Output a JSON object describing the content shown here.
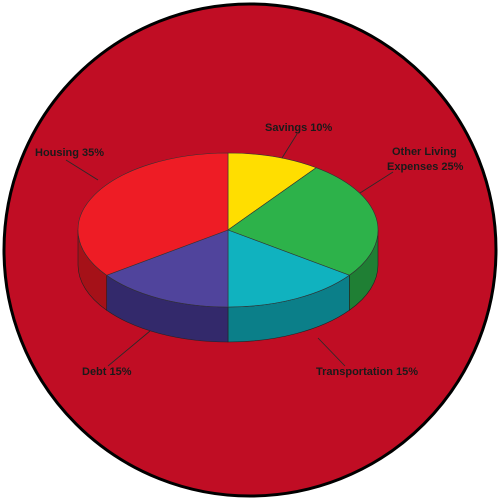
{
  "chart_data": {
    "type": "pie",
    "title": "",
    "slices": [
      {
        "name": "Savings",
        "value": 10,
        "label": "Savings 10%",
        "color": "#ffde00",
        "side_color": "#c9ae00"
      },
      {
        "name": "Other Living Expenses",
        "value": 25,
        "label_line1": "Other Living",
        "label_line2": "Expenses 25%",
        "color": "#2db24a",
        "side_color": "#1f7f34"
      },
      {
        "name": "Transportation",
        "value": 15,
        "label": "Transportation 15%",
        "color": "#10b2bf",
        "side_color": "#0b7f89"
      },
      {
        "name": "Debt",
        "value": 15,
        "label": "Debt 15%",
        "color": "#50449c",
        "side_color": "#33296b"
      },
      {
        "name": "Housing",
        "value": 35,
        "label": "Housing 35%",
        "color": "#ee1c25",
        "side_color": "#a51118"
      }
    ]
  },
  "colors": {
    "background_disc": "#c00d24",
    "disc_border": "#000000",
    "leader_line": "#2a2a2a"
  }
}
